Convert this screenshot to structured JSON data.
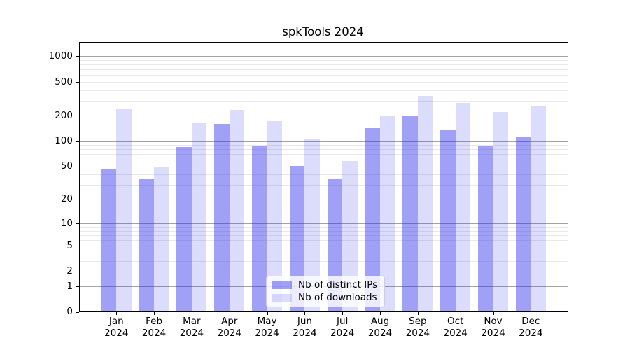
{
  "colors": {
    "ips_bar": "rgba(45,45,235,0.45)",
    "downloads_bar": "rgba(45,45,235,0.17)",
    "major_gridline": "#a2a2a2",
    "minor_gridline": "#e9e9e9",
    "axis": "#000000",
    "legend_border": "#d0d0d0"
  },
  "legend": {
    "items": [
      {
        "label": "Nb of distinct IPs"
      },
      {
        "label": "Nb of downloads"
      }
    ]
  },
  "chart_data": {
    "type": "bar",
    "title": "spkTools 2024",
    "categories": [
      "Jan 2024",
      "Feb 2024",
      "Mar 2024",
      "Apr 2024",
      "May 2024",
      "Jun 2024",
      "Jul 2024",
      "Aug 2024",
      "Sep 2024",
      "Oct 2024",
      "Nov 2024",
      "Dec 2024"
    ],
    "months": [
      "Jan",
      "Feb",
      "Mar",
      "Apr",
      "May",
      "Jun",
      "Jul",
      "Aug",
      "Sep",
      "Oct",
      "Nov",
      "Dec"
    ],
    "year": "2024",
    "series": [
      {
        "name": "Nb of distinct IPs",
        "values": [
          47,
          35,
          86,
          159,
          89,
          51,
          35,
          142,
          200,
          136,
          89,
          112
        ],
        "color": "rgba(45,45,235,0.45)"
      },
      {
        "name": "Nb of downloads",
        "values": [
          238,
          50,
          162,
          236,
          172,
          108,
          58,
          200,
          340,
          284,
          220,
          258
        ],
        "color": "rgba(45,45,235,0.17)"
      }
    ],
    "y_scale": "log10(value+1)",
    "y_ticks": [
      0,
      1,
      2,
      5,
      10,
      20,
      50,
      100,
      200,
      500,
      1000
    ],
    "y_major_gridlines": [
      1,
      10,
      100,
      1000
    ],
    "ylim": [
      0,
      1400
    ],
    "grid": "horizontal, major and minor",
    "legend_position": "lower center"
  }
}
